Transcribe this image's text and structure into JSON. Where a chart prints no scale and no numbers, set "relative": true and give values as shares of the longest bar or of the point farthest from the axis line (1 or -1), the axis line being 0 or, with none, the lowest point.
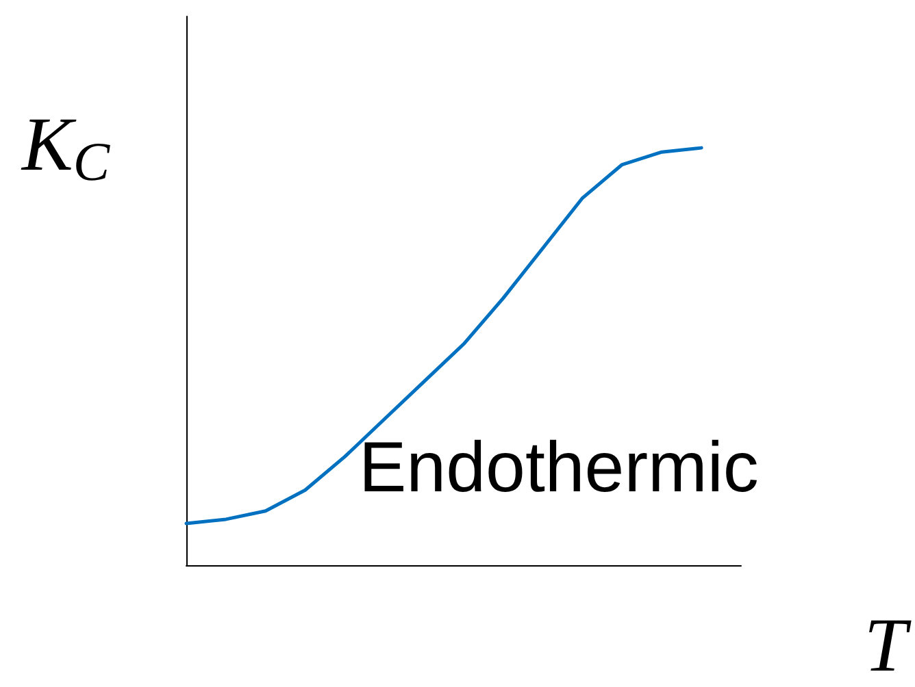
{
  "chart_data": {
    "type": "line",
    "relative": true,
    "xlabel": "T",
    "ylabel": "K$_{C}$",
    "annotations": [
      "Endothermic"
    ],
    "categories": [
      null,
      null,
      null,
      null,
      null,
      null,
      null,
      null,
      null,
      null,
      null,
      null,
      null,
      null,
      null
    ],
    "series": [
      {
        "color": "#0070c0",
        "values": [
          0.1,
          0.11,
          0.13,
          0.18,
          0.26,
          0.35,
          0.44,
          0.53,
          0.64,
          0.76,
          0.88,
          0.96,
          0.99,
          1.0,
          null
        ]
      }
    ]
  }
}
